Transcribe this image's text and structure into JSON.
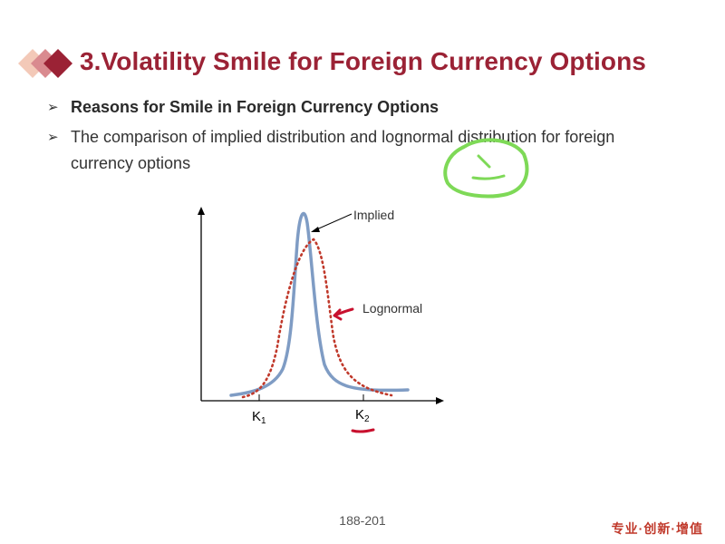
{
  "slide": {
    "title": "3.Volatility Smile for Foreign Currency Options",
    "bullets": [
      "Reasons for Smile in Foreign Currency Options",
      "The comparison of implied distribution and lognormal distribution for foreign currency options"
    ],
    "bullet_symbol": "➢",
    "figure": {
      "label_implied": "Implied",
      "label_lognormal": "Lognormal",
      "tick_k1_main": "K",
      "tick_k1_sub": "1",
      "tick_k2_main": "K",
      "tick_k2_sub": "2"
    },
    "page_number": "188-201",
    "slogan": "专业·创新·增值"
  },
  "colors": {
    "title": "#9b2235",
    "implied_curve": "#7f9cc4",
    "lognormal_curve": "#c0392b",
    "annotation_red": "#c8102e",
    "annotation_green": "#7ed957"
  }
}
